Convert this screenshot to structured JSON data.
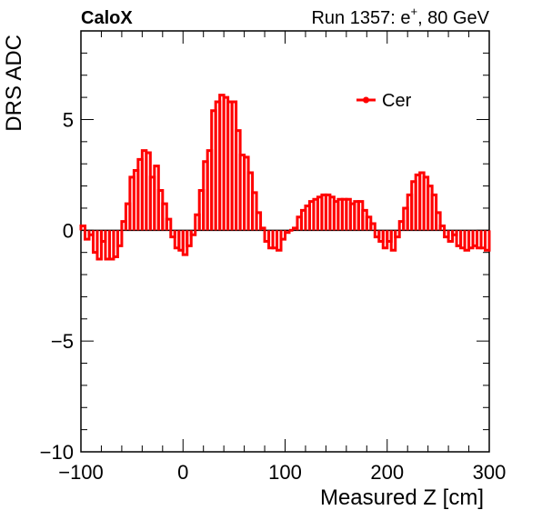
{
  "header": {
    "experiment": "CaloX",
    "run_label": "Run 1357: e",
    "run_superscript": "+",
    "run_suffix": ", 80 GeV"
  },
  "colors": {
    "series": "#ff0000",
    "axis": "#000000",
    "zero_line": "#000000"
  },
  "chart_data": {
    "type": "line",
    "style": "step-histogram",
    "xlabel": "Measured Z [cm]",
    "ylabel": "DRS ADC",
    "xlim": [
      -100,
      300
    ],
    "ylim": [
      -10,
      9
    ],
    "xticks": [
      -100,
      0,
      100,
      200,
      300
    ],
    "yticks": [
      -10,
      -5,
      0,
      5
    ],
    "xtick_labels": [
      "−100",
      "0",
      "100",
      "200",
      "300"
    ],
    "ytick_labels": [
      "−10",
      "−5",
      "0",
      "5"
    ],
    "legend_position": "top-right",
    "reference_line_y": 0,
    "bin_width": 4,
    "series": [
      {
        "name": "Cer",
        "style": "alternating-bins",
        "x": [
          -100,
          -96,
          -92,
          -88,
          -84,
          -80,
          -76,
          -72,
          -68,
          -64,
          -60,
          -56,
          -52,
          -48,
          -44,
          -40,
          -36,
          -32,
          -28,
          -24,
          -20,
          -16,
          -12,
          -8,
          -4,
          0,
          4,
          8,
          12,
          16,
          20,
          24,
          28,
          32,
          36,
          40,
          44,
          48,
          52,
          56,
          60,
          64,
          68,
          72,
          76,
          80,
          84,
          88,
          92,
          96,
          100,
          104,
          108,
          112,
          116,
          120,
          124,
          128,
          132,
          136,
          140,
          144,
          148,
          152,
          156,
          160,
          164,
          168,
          172,
          176,
          180,
          184,
          188,
          192,
          196,
          200,
          204,
          208,
          212,
          216,
          220,
          224,
          228,
          232,
          236,
          240,
          244,
          248,
          252,
          256,
          260,
          264,
          268,
          272,
          276,
          280,
          284,
          288,
          292,
          296
        ],
        "y": [
          0.2,
          -0.4,
          -0.2,
          -1.0,
          -1.3,
          -0.5,
          -1.3,
          -1.3,
          -1.2,
          -0.7,
          0.4,
          1.2,
          2.4,
          2.7,
          3.2,
          3.6,
          3.5,
          2.4,
          2.9,
          1.8,
          1.2,
          0.5,
          -0.3,
          -0.8,
          -0.9,
          -1.1,
          -0.7,
          -0.2,
          0.7,
          1.8,
          3.1,
          3.6,
          5.4,
          5.8,
          6.1,
          6.0,
          5.8,
          5.8,
          4.5,
          3.4,
          3.3,
          2.6,
          1.7,
          0.8,
          0.1,
          -0.5,
          -0.8,
          -0.8,
          -0.9,
          -0.4,
          -0.1,
          0.0,
          0.1,
          0.6,
          0.9,
          1.1,
          1.3,
          1.4,
          1.5,
          1.6,
          1.6,
          1.5,
          1.3,
          1.4,
          1.4,
          1.4,
          1.2,
          1.3,
          1.3,
          0.9,
          0.6,
          0.3,
          -0.3,
          -0.5,
          -0.8,
          -0.5,
          -0.9,
          -0.3,
          0.4,
          1.0,
          1.6,
          2.2,
          2.5,
          2.6,
          2.4,
          2.0,
          1.6,
          0.8,
          0.2,
          -0.3,
          -0.5,
          -0.2,
          -0.7,
          -0.8,
          -0.9,
          -0.8,
          -0.7,
          -0.8,
          -0.8,
          -0.9
        ]
      }
    ]
  }
}
